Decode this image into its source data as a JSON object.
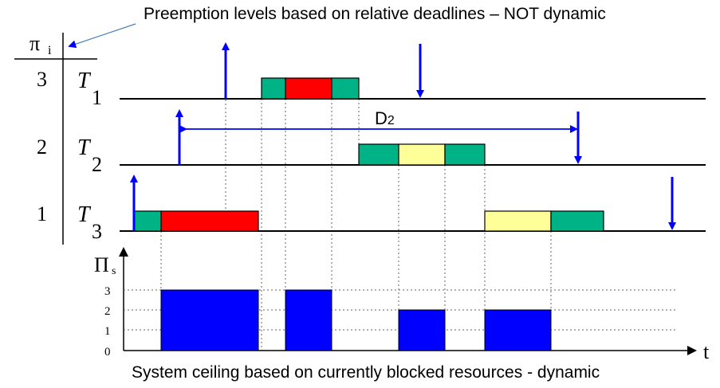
{
  "title_top": "Preemption levels based on relative deadlines – NOT dynamic",
  "title_bottom": "System ceiling based on currently blocked resources - dynamic",
  "header": {
    "pi_symbol": "π",
    "pi_sub": "i"
  },
  "tasks": [
    {
      "level": "3",
      "name": "T",
      "sub": "1"
    },
    {
      "level": "2",
      "name": "T",
      "sub": "2"
    },
    {
      "level": "1",
      "name": "T",
      "sub": "3"
    }
  ],
  "deadline_label": "D",
  "deadline_label_sub": "2",
  "ceiling_axis": {
    "symbol": "Π",
    "sub": "s",
    "ticks": [
      "3",
      "2",
      "1",
      "0"
    ],
    "time_label": "t"
  },
  "colors": {
    "green": "#00b386",
    "red": "#ff0000",
    "yellow": "#ffff99",
    "blue": "#0000ff",
    "arrow": "#0000ff",
    "line": "#000000"
  },
  "legend_symbols": [
    "green",
    "red",
    "yellow"
  ],
  "ceiling_values": [
    3,
    3,
    2,
    2
  ]
}
